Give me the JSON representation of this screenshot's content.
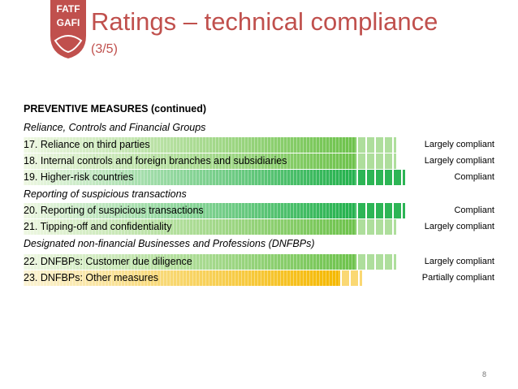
{
  "header": {
    "logo_text_top": "FATF",
    "logo_text_bottom": "GAFI",
    "title": "Ratings – technical compliance",
    "subtitle": "(3/5)"
  },
  "section": {
    "heading": "PREVENTIVE MEASURES (continued)"
  },
  "groups": [
    {
      "label": "Reliance, Controls and Financial Groups"
    },
    {
      "label": "Reporting of suspicious transactions"
    },
    {
      "label": "Designated non-financial Businesses and Professions (DNFBPs)"
    }
  ],
  "rows": [
    {
      "label": "17. Reliance on third parties",
      "rating": "Largely compliant",
      "level": 0.75
    },
    {
      "label": "18. Internal controls and foreign branches and subsidiaries",
      "rating": "Largely compliant",
      "level": 0.75
    },
    {
      "label": "19. Higher-risk countries",
      "rating": "Compliant",
      "level": 1.0
    },
    {
      "label": "20. Reporting of suspicious transactions",
      "rating": "Compliant",
      "level": 1.0
    },
    {
      "label": "21. Tipping-off and confidentiality",
      "rating": "Largely compliant",
      "level": 0.75
    },
    {
      "label": "22. DNFBPs: Customer due diligence",
      "rating": "Largely compliant",
      "level": 0.75
    },
    {
      "label": "23. DNFBPs: Other measures",
      "rating": "Partially compliant",
      "level": 0.5
    }
  ],
  "colors": {
    "title": "#c0504d",
    "compliant": "#22b14c",
    "largely_compliant": "#6cc24a",
    "partially_compliant": "#f5b800"
  },
  "page_number": "8"
}
